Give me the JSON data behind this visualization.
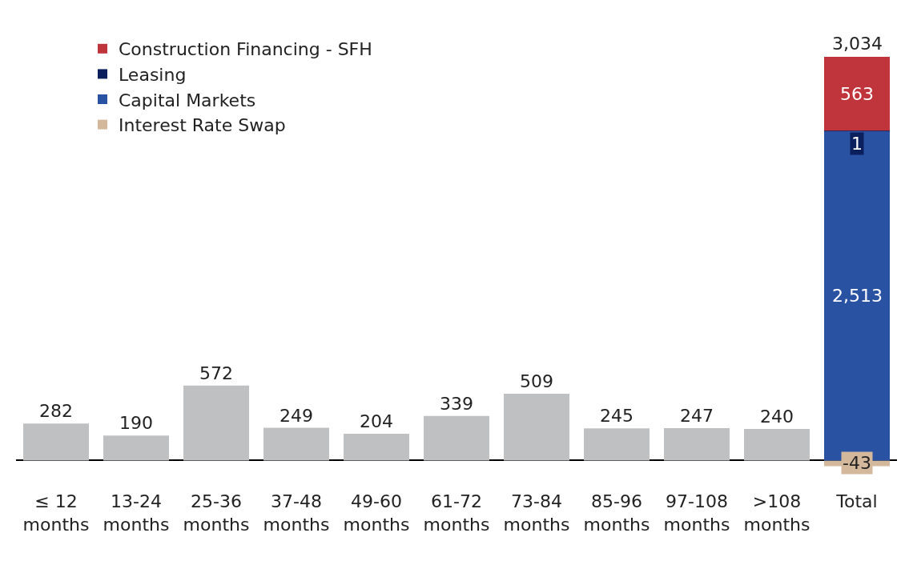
{
  "chart_data": {
    "type": "bar",
    "categories": [
      "≤ 12 months",
      "13-24 months",
      "25-36 months",
      "37-48 months",
      "49-60 months",
      "61-72 months",
      "73-84 months",
      "85-96 months",
      "97-108 months",
      ">108 months",
      "Total"
    ],
    "series": [
      {
        "color": "#bfc0c2",
        "values": [
          282,
          190,
          572,
          249,
          204,
          339,
          509,
          245,
          247,
          240,
          null
        ],
        "value_labels": [
          "282",
          "190",
          "572",
          "249",
          "204",
          "339",
          "509",
          "245",
          "247",
          "240",
          null
        ]
      },
      {
        "name": "Interest Rate Swap",
        "color": "#d4b89c",
        "values": [
          null,
          null,
          null,
          null,
          null,
          null,
          null,
          null,
          null,
          null,
          -43
        ],
        "value_labels": [
          null,
          null,
          null,
          null,
          null,
          null,
          null,
          null,
          null,
          null,
          "-43"
        ]
      },
      {
        "name": "Capital Markets",
        "color": "#2a52a3",
        "values": [
          null,
          null,
          null,
          null,
          null,
          null,
          null,
          null,
          null,
          null,
          2513
        ],
        "value_labels": [
          null,
          null,
          null,
          null,
          null,
          null,
          null,
          null,
          null,
          null,
          "2,513"
        ]
      },
      {
        "name": "Leasing",
        "color": "#0a1f5c",
        "values": [
          null,
          null,
          null,
          null,
          null,
          null,
          null,
          null,
          null,
          null,
          1
        ],
        "value_labels": [
          null,
          null,
          null,
          null,
          null,
          null,
          null,
          null,
          null,
          null,
          "1"
        ]
      },
      {
        "name": "Construction Financing - SFH",
        "color": "#c0343b",
        "values": [
          null,
          null,
          null,
          null,
          null,
          null,
          null,
          null,
          null,
          null,
          563
        ],
        "value_labels": [
          null,
          null,
          null,
          null,
          null,
          null,
          null,
          null,
          null,
          null,
          "563"
        ]
      }
    ],
    "stacked": true,
    "totals": [
      null,
      null,
      null,
      null,
      null,
      null,
      null,
      null,
      null,
      null,
      "3,034"
    ],
    "legend": "top left",
    "grid": false
  }
}
